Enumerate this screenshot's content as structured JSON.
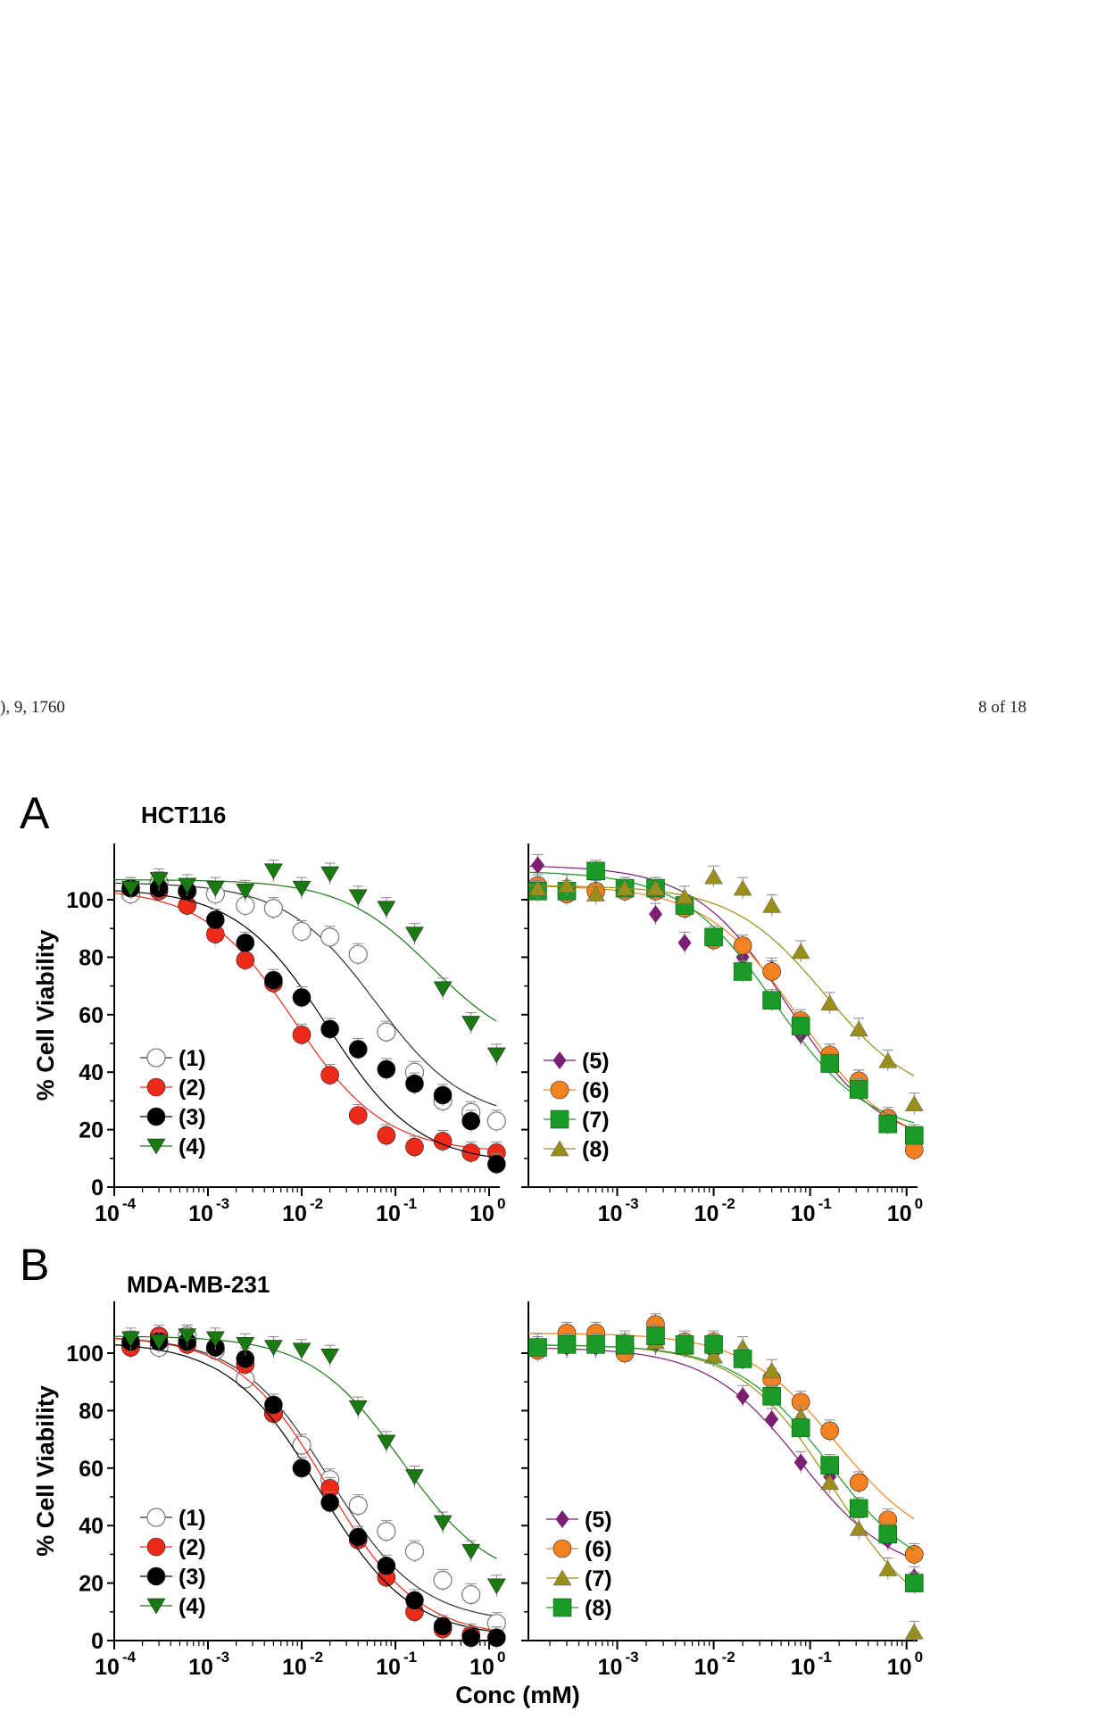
{
  "header": {
    "left_text": "), 9, 1760",
    "right_text": "8 of 18"
  },
  "panels": [
    {
      "letter": "A",
      "title": "HCT116"
    },
    {
      "letter": "B",
      "title": "MDA-MB-231"
    }
  ],
  "common": {
    "ylabel": "% Cell Viability",
    "xlabel": "Conc (mM)",
    "y_ticks": [
      "0",
      "20",
      "40",
      "60",
      "80",
      "100"
    ],
    "x_ticks_left": [
      "10",
      "10",
      "10",
      "10",
      "10"
    ],
    "x_ticks_left_exp": [
      "-4",
      "-3",
      "-2",
      "-1",
      "0"
    ],
    "x_ticks_right": [
      "10",
      "10",
      "10",
      "10"
    ],
    "x_ticks_right_exp": [
      "-3",
      "-2",
      "-1",
      "0"
    ]
  },
  "colors": {
    "c1": "#ffffff",
    "c2": "#ee2a1b",
    "c3": "#000000",
    "c4": "#1a7a12",
    "c5": "#7a1f73",
    "c6": "#f58220",
    "c7a": "#1a9a26",
    "c7b": "#9a8f1a"
  },
  "chart_data": [
    {
      "type": "scatter",
      "panel": "A-left",
      "xscale": "log",
      "xlim": [
        0.0001,
        1.3
      ],
      "ylim": [
        0,
        120
      ],
      "ylabel": "% Cell Viability",
      "legend": "bottom-left",
      "series": [
        {
          "name": "(1)",
          "marker": "circle-open",
          "color": "#ffffff",
          "x": [
            0.00015,
            0.0003,
            0.0006,
            0.0012,
            0.0025,
            0.005,
            0.01,
            0.02,
            0.04,
            0.08,
            0.16,
            0.32,
            0.64,
            1.2
          ],
          "y": [
            102,
            106,
            103,
            102,
            98,
            97,
            89,
            87,
            81,
            54,
            40,
            30,
            26,
            23
          ]
        },
        {
          "name": "(2)",
          "marker": "circle",
          "color": "#ee2a1b",
          "x": [
            0.00015,
            0.0003,
            0.0006,
            0.0012,
            0.0025,
            0.005,
            0.01,
            0.02,
            0.04,
            0.08,
            0.16,
            0.32,
            0.64,
            1.2
          ],
          "y": [
            104,
            103,
            98,
            88,
            79,
            71,
            53,
            39,
            25,
            18,
            14,
            16,
            12,
            12
          ]
        },
        {
          "name": "(3)",
          "marker": "circle",
          "color": "#000000",
          "x": [
            0.00015,
            0.0003,
            0.0006,
            0.0012,
            0.0025,
            0.005,
            0.01,
            0.02,
            0.04,
            0.08,
            0.16,
            0.32,
            0.64,
            1.2
          ],
          "y": [
            104,
            104,
            103,
            93,
            85,
            72,
            66,
            55,
            48,
            41,
            36,
            32,
            23,
            8
          ]
        },
        {
          "name": "(4)",
          "marker": "triangle-down",
          "color": "#1a7a12",
          "x": [
            0.00015,
            0.0003,
            0.0006,
            0.0012,
            0.0025,
            0.005,
            0.01,
            0.02,
            0.04,
            0.08,
            0.16,
            0.32,
            0.64,
            1.2
          ],
          "y": [
            104,
            107,
            105,
            104,
            103,
            110,
            104,
            109,
            101,
            97,
            88,
            69,
            57,
            46
          ]
        }
      ]
    },
    {
      "type": "scatter",
      "panel": "A-right",
      "xscale": "log",
      "xlim": [
        0.00012,
        1.3
      ],
      "ylim": [
        0,
        120
      ],
      "legend": "bottom-left",
      "series": [
        {
          "name": "(5)",
          "marker": "diamond",
          "color": "#7a1f73",
          "x": [
            0.00015,
            0.0003,
            0.0006,
            0.0012,
            0.0025,
            0.005,
            0.01,
            0.02,
            0.04,
            0.08,
            0.16,
            0.32,
            0.64,
            1.2
          ],
          "y": [
            112,
            102,
            109,
            103,
            95,
            85,
            86,
            80,
            76,
            53,
            46,
            37,
            23,
            14
          ]
        },
        {
          "name": "(6)",
          "marker": "circle",
          "color": "#f58220",
          "x": [
            0.00015,
            0.0003,
            0.0006,
            0.0012,
            0.0025,
            0.005,
            0.01,
            0.02,
            0.04,
            0.08,
            0.16,
            0.32,
            0.64,
            1.2
          ],
          "y": [
            105,
            102,
            103,
            103,
            103,
            97,
            86,
            84,
            75,
            58,
            46,
            37,
            24,
            13
          ]
        },
        {
          "name": "(7)",
          "marker": "square",
          "color": "#1a9a26",
          "x": [
            0.00015,
            0.0003,
            0.0006,
            0.0012,
            0.0025,
            0.005,
            0.01,
            0.02,
            0.04,
            0.08,
            0.16,
            0.32,
            0.64,
            1.2
          ],
          "y": [
            103,
            103,
            110,
            104,
            104,
            98,
            87,
            75,
            65,
            56,
            43,
            34,
            22,
            18
          ]
        },
        {
          "name": "(8)",
          "marker": "triangle-up",
          "color": "#9a8f1a",
          "x": [
            0.00015,
            0.0003,
            0.0006,
            0.0012,
            0.0025,
            0.005,
            0.01,
            0.02,
            0.04,
            0.08,
            0.16,
            0.32,
            0.64,
            1.2
          ],
          "y": [
            104,
            105,
            102,
            104,
            104,
            101,
            108,
            104,
            98,
            82,
            64,
            55,
            44,
            29
          ]
        }
      ]
    },
    {
      "type": "scatter",
      "panel": "B-left",
      "xscale": "log",
      "xlim": [
        0.0001,
        1.3
      ],
      "ylim": [
        0,
        120
      ],
      "ylabel": "% Cell Viability",
      "legend": "bottom-left",
      "series": [
        {
          "name": "(1)",
          "marker": "circle-open",
          "color": "#ffffff",
          "x": [
            0.00015,
            0.0003,
            0.0006,
            0.0012,
            0.0025,
            0.005,
            0.01,
            0.02,
            0.04,
            0.08,
            0.16,
            0.32,
            0.64,
            1.2
          ],
          "y": [
            103,
            102,
            106,
            101,
            91,
            79,
            68,
            56,
            47,
            38,
            31,
            21,
            16,
            6
          ]
        },
        {
          "name": "(2)",
          "marker": "circle",
          "color": "#ee2a1b",
          "x": [
            0.00015,
            0.0003,
            0.0006,
            0.0012,
            0.0025,
            0.005,
            0.01,
            0.02,
            0.04,
            0.08,
            0.16,
            0.32,
            0.64,
            1.2
          ],
          "y": [
            102,
            106,
            103,
            102,
            96,
            79,
            60,
            53,
            35,
            22,
            10,
            4,
            2,
            1
          ]
        },
        {
          "name": "(3)",
          "marker": "circle",
          "color": "#000000",
          "x": [
            0.00015,
            0.0003,
            0.0006,
            0.0012,
            0.0025,
            0.005,
            0.01,
            0.02,
            0.04,
            0.08,
            0.16,
            0.32,
            0.64,
            1.2
          ],
          "y": [
            104,
            104,
            104,
            102,
            98,
            82,
            60,
            48,
            36,
            26,
            14,
            5,
            1,
            1
          ]
        },
        {
          "name": "(4)",
          "marker": "triangle-down",
          "color": "#1a7a12",
          "x": [
            0.00015,
            0.0003,
            0.0006,
            0.0012,
            0.0025,
            0.005,
            0.01,
            0.02,
            0.04,
            0.08,
            0.16,
            0.32,
            0.64,
            1.2
          ],
          "y": [
            105,
            104,
            106,
            105,
            103,
            102,
            101,
            99,
            81,
            69,
            57,
            41,
            31,
            19
          ]
        }
      ]
    },
    {
      "type": "scatter",
      "panel": "B-right",
      "xscale": "log",
      "xlim": [
        0.00012,
        1.3
      ],
      "ylim": [
        0,
        120
      ],
      "legend": "bottom-left",
      "series": [
        {
          "name": "(5)",
          "marker": "diamond",
          "color": "#7a1f73",
          "x": [
            0.00015,
            0.0003,
            0.0006,
            0.0012,
            0.0025,
            0.005,
            0.01,
            0.02,
            0.04,
            0.08,
            0.16,
            0.32,
            0.64,
            1.2
          ],
          "y": [
            102,
            102,
            102,
            104,
            103,
            103,
            100,
            85,
            77,
            62,
            57,
            46,
            35,
            22
          ]
        },
        {
          "name": "(6)",
          "marker": "circle",
          "color": "#f58220",
          "x": [
            0.00015,
            0.0003,
            0.0006,
            0.0012,
            0.0025,
            0.005,
            0.01,
            0.02,
            0.04,
            0.08,
            0.16,
            0.32,
            0.64,
            1.2
          ],
          "y": [
            101,
            107,
            107,
            100,
            110,
            104,
            104,
            98,
            91,
            83,
            73,
            55,
            42,
            30
          ]
        },
        {
          "name": "(7)",
          "marker": "triangle-up",
          "color": "#9a8f1a",
          "x": [
            0.00015,
            0.0003,
            0.0006,
            0.0012,
            0.0025,
            0.005,
            0.01,
            0.02,
            0.04,
            0.08,
            0.16,
            0.32,
            0.64,
            1.2
          ],
          "y": [
            103,
            103,
            103,
            102,
            104,
            102,
            99,
            102,
            94,
            78,
            55,
            39,
            25,
            3
          ]
        },
        {
          "name": "(8)",
          "marker": "square",
          "color": "#1a9a26",
          "x": [
            0.00015,
            0.0003,
            0.0006,
            0.0012,
            0.0025,
            0.005,
            0.01,
            0.02,
            0.04,
            0.08,
            0.16,
            0.32,
            0.64,
            1.2
          ],
          "y": [
            102,
            103,
            103,
            103,
            106,
            103,
            103,
            98,
            85,
            74,
            61,
            46,
            37,
            20
          ]
        }
      ]
    }
  ]
}
